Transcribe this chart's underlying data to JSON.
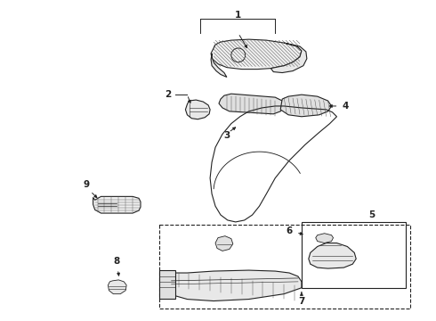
{
  "bg_color": "#ffffff",
  "line_color": "#222222",
  "label_color": "#111111",
  "figsize": [
    4.9,
    3.6
  ],
  "dpi": 100
}
